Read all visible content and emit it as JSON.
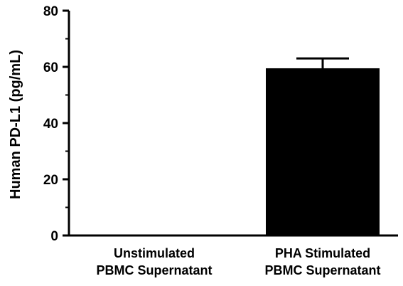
{
  "chart_data": {
    "type": "bar",
    "title": "",
    "xlabel": "",
    "ylabel": "Human PD-L1 (pg/mL)",
    "ylim": [
      0,
      80
    ],
    "yticks": [
      "0",
      "20",
      "40",
      "60",
      "80"
    ],
    "categories": [
      [
        "Unstimulated",
        "PBMC Supernatant"
      ],
      [
        "PHA Stimulated",
        "PBMC Supernatant"
      ]
    ],
    "values": [
      0,
      59.5
    ],
    "error": [
      0,
      3.5
    ],
    "grid": false,
    "legend": "none",
    "colors": {
      "bar": "#000000",
      "axis": "#000000"
    }
  }
}
